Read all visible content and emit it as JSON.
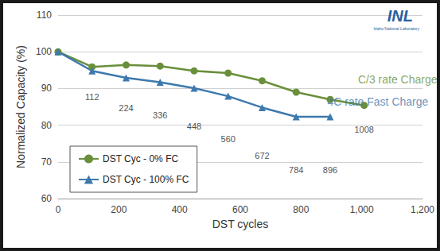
{
  "chart_data": {
    "type": "line",
    "x_label": "DST cycles",
    "y_label": "Normalized Capacity (%)",
    "xlim": [
      0,
      1200
    ],
    "xticks": [
      0,
      200,
      400,
      600,
      800,
      1000,
      1200
    ],
    "ylim": [
      60,
      110
    ],
    "yticks": [
      60,
      70,
      80,
      90,
      100,
      110
    ],
    "grid": true,
    "legend": "lower left",
    "series": [
      {
        "name": "DST Cyc - 0% FC",
        "color": "#6a8f3b",
        "marker": "circle",
        "x": [
          0,
          112,
          224,
          336,
          448,
          560,
          672,
          784,
          896,
          1008
        ],
        "values": [
          100,
          95.9,
          96.4,
          96.1,
          94.8,
          94.2,
          92.1,
          89.0,
          87.0,
          85.4
        ]
      },
      {
        "name": "DST Cyc - 100% FC",
        "color": "#3d79ad",
        "marker": "triangle",
        "x": [
          0,
          112,
          224,
          336,
          448,
          560,
          672,
          784,
          896
        ],
        "values": [
          100,
          94.8,
          92.9,
          91.7,
          90.1,
          87.9,
          84.8,
          82.3,
          82.3
        ]
      }
    ],
    "annotations": [
      {
        "text": "112",
        "x": 112,
        "y": 87.7,
        "color": "#222222"
      },
      {
        "text": "224",
        "x": 224,
        "y": 84.7,
        "color": "#222222"
      },
      {
        "text": "336",
        "x": 336,
        "y": 82.7,
        "color": "#222222"
      },
      {
        "text": "448",
        "x": 448,
        "y": 79.7,
        "color": "#222222"
      },
      {
        "text": "560",
        "x": 560,
        "y": 76.2,
        "color": "#222222"
      },
      {
        "text": "672",
        "x": 672,
        "y": 71.7,
        "color": "#222222"
      },
      {
        "text": "784",
        "x": 784,
        "y": 67.8,
        "color": "#222222"
      },
      {
        "text": "896",
        "x": 896,
        "y": 67.8,
        "color": "#222222"
      },
      {
        "text": "1008",
        "x": 1008,
        "y": 78.8,
        "color": "#222222"
      },
      {
        "text": "C/3 rate Charge",
        "x": 1118,
        "y": 92.5,
        "color": "#6a8f3b"
      },
      {
        "text": "4C rate Fast Charge",
        "x": 1053,
        "y": 86.4,
        "color": "#3d79ad"
      }
    ],
    "logo": {
      "text": "INL",
      "subtext": "Idaho National Laboratory",
      "color": "#2b5f9e"
    }
  }
}
